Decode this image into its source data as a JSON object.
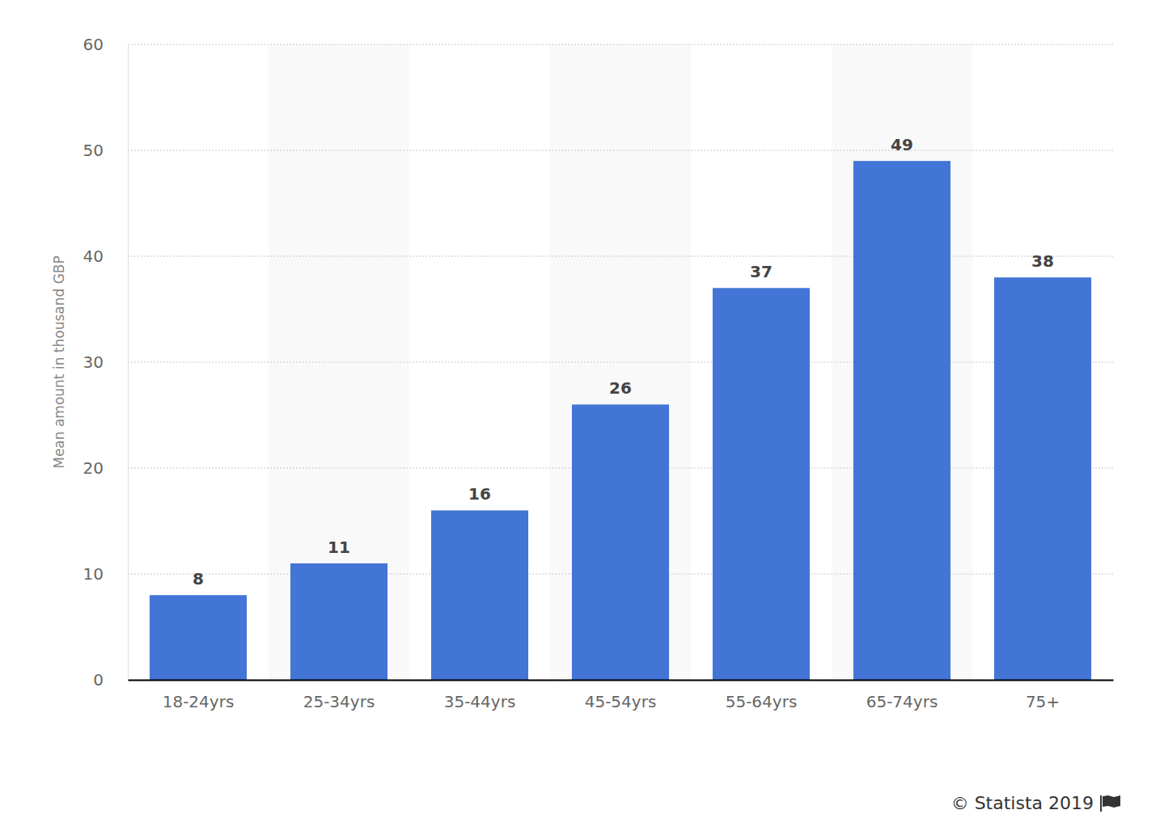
{
  "chart_data": {
    "type": "bar",
    "y_label": "Mean amount in thousand GBP",
    "categories": [
      "18-24yrs",
      "25-34yrs",
      "35-44yrs",
      "45-54yrs",
      "55-64yrs",
      "65-74yrs",
      "75+"
    ],
    "values": [
      8,
      11,
      16,
      26,
      37,
      49,
      38
    ],
    "color": "#4375d6",
    "ylim": [
      0,
      60
    ],
    "yticks": [
      0,
      10,
      20,
      30,
      40,
      50,
      60
    ],
    "grid": true,
    "data_labels": true,
    "source": "© Statista 2019"
  }
}
